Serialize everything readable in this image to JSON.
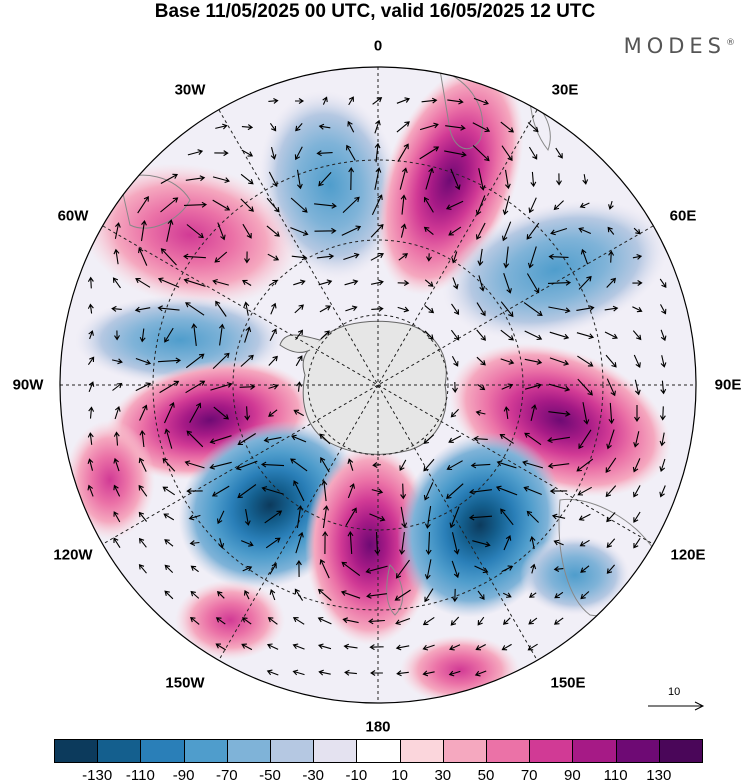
{
  "title": "Base 11/05/2025 00 UTC, valid 16/05/2025 12 UTC",
  "brand": "MODES",
  "brand_mark": "®",
  "longitude_labels": {
    "top": "0",
    "bottom": "180",
    "left": "90W",
    "right": "90E",
    "w30": "30W",
    "e30": "30E",
    "w60": "60W",
    "e60": "60E",
    "w120": "120W",
    "e120": "120E",
    "w150": "150W",
    "e150": "150E"
  },
  "reference_vector": {
    "label": "10"
  },
  "colorbar": {
    "ticks": [
      "-130",
      "-110",
      "-90",
      "-70",
      "-50",
      "-30",
      "-10",
      "10",
      "30",
      "50",
      "70",
      "90",
      "110",
      "130"
    ],
    "colors": [
      "#0c3a5c",
      "#145f8e",
      "#2a7fb8",
      "#4f9dcc",
      "#7fb3d8",
      "#b5c8e2",
      "#e4e2f0",
      "#ffffff",
      "#fbd6dc",
      "#f5a8bf",
      "#eb72a7",
      "#d13a95",
      "#a61a86",
      "#6e0a74",
      "#4a0659"
    ]
  },
  "map_features": {
    "projection": "south polar stereographic",
    "anomaly_centers": [
      {
        "sign": "negative",
        "lon": "20W",
        "strength": -50
      },
      {
        "sign": "positive",
        "lon": "15E",
        "strength": 90
      },
      {
        "sign": "positive",
        "lon": "60W",
        "strength": 50
      },
      {
        "sign": "negative",
        "lon": "60E",
        "strength": -50
      },
      {
        "sign": "negative",
        "lon": "80W",
        "strength": -50
      },
      {
        "sign": "positive",
        "lon": "90E",
        "strength": 90
      },
      {
        "sign": "positive",
        "lon": "105W",
        "strength": 90
      },
      {
        "sign": "negative",
        "lon": "145W",
        "strength": -110
      },
      {
        "sign": "positive",
        "lon": "180",
        "strength": 110
      },
      {
        "sign": "negative",
        "lon": "140E",
        "strength": -110
      }
    ]
  }
}
